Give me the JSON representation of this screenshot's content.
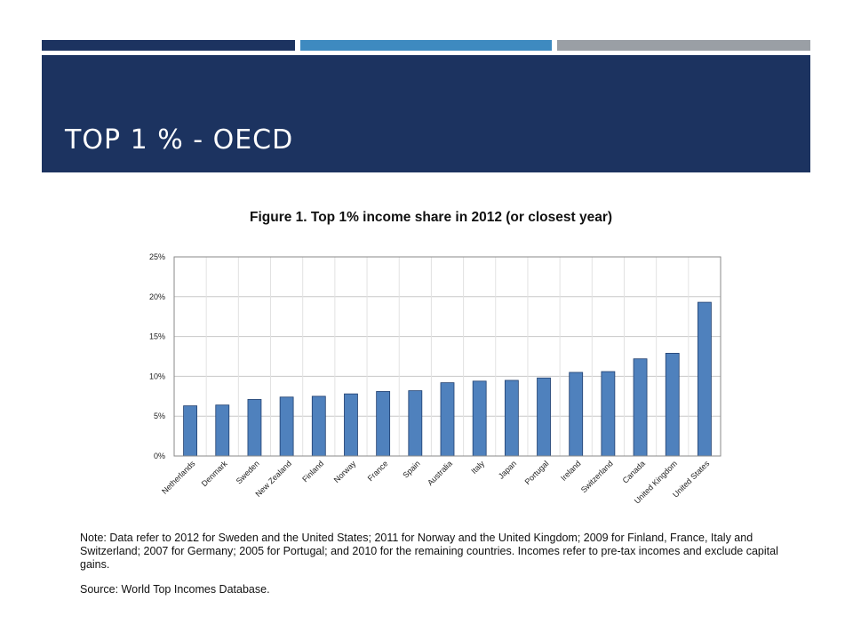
{
  "slide": {
    "title": "TOP 1 % - OECD",
    "colors": {
      "band": "#1c3360",
      "accent_1": "#1c3360",
      "accent_2": "#3e8ac0",
      "accent_3": "#9a9fa5"
    }
  },
  "figure": {
    "note": "Note: Data refer to 2012 for Sweden and the United States; 2011 for Norway and the United Kingdom; 2009 for Finland, France, Italy and Switzerland; 2007 for Germany; 2005 for Portugal; and 2010 for the remaining countries. Incomes refer to pre-tax incomes and exclude capital gains.",
    "source": "Source: World Top Incomes Database."
  },
  "chart_data": {
    "type": "bar",
    "title": "Figure 1.  Top 1% income share in 2012 (or closest year)",
    "xlabel": "",
    "ylabel": "",
    "categories": [
      "Netherlands",
      "Denmark",
      "Sweden",
      "New Zealand",
      "Finland",
      "Norway",
      "France",
      "Spain",
      "Australia",
      "Italy",
      "Japan",
      "Portugal",
      "Ireland",
      "Switzerland",
      "Canada",
      "United Kingdom",
      "United States"
    ],
    "values": [
      6.3,
      6.4,
      7.1,
      7.4,
      7.5,
      7.8,
      8.1,
      8.2,
      9.2,
      9.4,
      9.5,
      9.8,
      10.5,
      10.6,
      12.2,
      12.9,
      19.3
    ],
    "ylim": [
      0,
      25
    ],
    "yticks": [
      0,
      5,
      10,
      15,
      20,
      25
    ],
    "ytick_labels": [
      "0%",
      "5%",
      "10%",
      "15%",
      "20%",
      "25%"
    ],
    "grid": true,
    "bar_color": "#4f81bd",
    "bar_edge_color": "#1f3e6e"
  }
}
